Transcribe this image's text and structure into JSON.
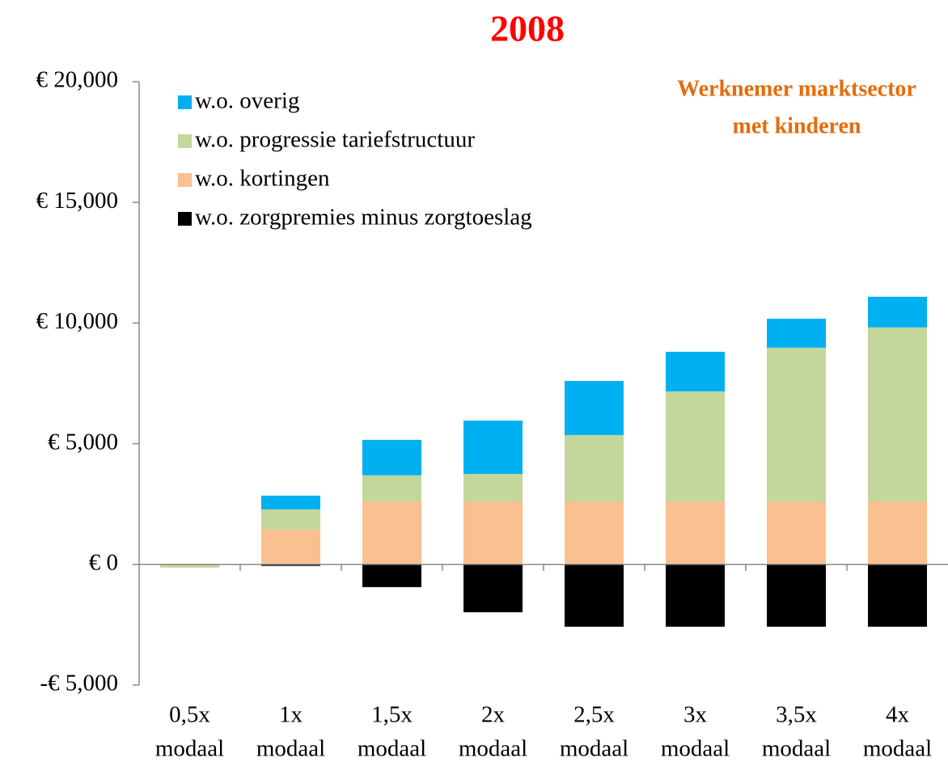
{
  "chart_data": {
    "type": "stacked-bar",
    "title": "2008",
    "annotation": [
      "Werknemer marktsector",
      "met kinderen"
    ],
    "categories": [
      [
        "0,5x",
        "modaal"
      ],
      [
        "1x",
        "modaal"
      ],
      [
        "1,5x",
        "modaal"
      ],
      [
        "2x",
        "modaal"
      ],
      [
        "2,5x",
        "modaal"
      ],
      [
        "3x",
        "modaal"
      ],
      [
        "3,5x",
        "modaal"
      ],
      [
        "4x",
        "modaal"
      ]
    ],
    "series": [
      {
        "name": "w.o. zorgpremies minus zorgtoeslag",
        "color": "#000000",
        "values": [
          0,
          -60,
          -940,
          -1980,
          -2580,
          -2580,
          -2580,
          -2580
        ]
      },
      {
        "name": "w.o. kortingen",
        "color": "#fac090",
        "values": [
          0,
          1440,
          2610,
          2610,
          2610,
          2610,
          2610,
          2610
        ]
      },
      {
        "name": "w.o. progressie tariefstructuur",
        "color": "#c3d69b",
        "values": [
          -130,
          840,
          1080,
          1140,
          2750,
          4560,
          6370,
          7210
        ]
      },
      {
        "name": "w.o. overig",
        "color": "#00b0f0",
        "values": [
          0,
          570,
          1470,
          2210,
          2240,
          1640,
          1200,
          1270
        ]
      }
    ],
    "ylim": [
      -5000,
      20000
    ],
    "yticks": [
      {
        "value": -5000,
        "label": "-€ 5,000"
      },
      {
        "value": 0,
        "label": "€ 0"
      },
      {
        "value": 5000,
        "label": "€ 5,000"
      },
      {
        "value": 10000,
        "label": "€ 10,000"
      },
      {
        "value": 15000,
        "label": "€ 15,000"
      },
      {
        "value": 20000,
        "label": "€ 20,000"
      }
    ],
    "legend": "top-left"
  }
}
